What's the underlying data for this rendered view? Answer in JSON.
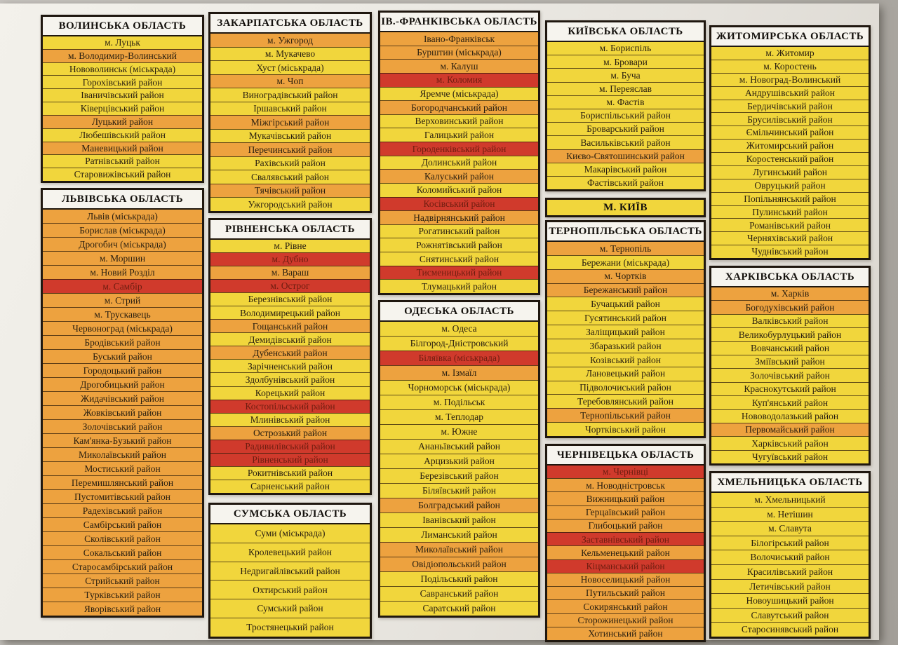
{
  "colors": {
    "yellow": "#f1d63c",
    "orange": "#eda23f",
    "red": "#d03a2c",
    "header_bg": "#f6f4ee",
    "paper": "#eceae4",
    "text": "#281e10",
    "red_row_text": "#6e1d10"
  },
  "regions": [
    {
      "id": "volyn",
      "title": "ВОЛИНСЬКА ОБЛАСТЬ",
      "header_zone": "white",
      "rows": [
        {
          "label": "м. Луцьк",
          "zone": "yellow"
        },
        {
          "label": "м. Володимир-Волинський",
          "zone": "orange"
        },
        {
          "label": "Нововолинськ (міськрада)",
          "zone": "yellow"
        },
        {
          "label": "Горохівський район",
          "zone": "yellow"
        },
        {
          "label": "Іваничівський район",
          "zone": "yellow"
        },
        {
          "label": "Ківерцівський район",
          "zone": "yellow"
        },
        {
          "label": "Луцький район",
          "zone": "orange"
        },
        {
          "label": "Любешівський район",
          "zone": "yellow"
        },
        {
          "label": "Маневицький район",
          "zone": "orange"
        },
        {
          "label": "Ратнівський район",
          "zone": "yellow"
        },
        {
          "label": "Старовижівський район",
          "zone": "yellow"
        }
      ]
    },
    {
      "id": "lviv",
      "title": "ЛЬВІВСЬКА ОБЛАСТЬ",
      "header_zone": "white",
      "rows": [
        {
          "label": "Львів (міськрада)",
          "zone": "orange"
        },
        {
          "label": "Борислав (міськрада)",
          "zone": "orange"
        },
        {
          "label": "Дрогобич (міськрада)",
          "zone": "orange"
        },
        {
          "label": "м. Моршин",
          "zone": "orange"
        },
        {
          "label": "м. Новий Розділ",
          "zone": "orange"
        },
        {
          "label": "м. Самбір",
          "zone": "red"
        },
        {
          "label": "м. Стрий",
          "zone": "orange"
        },
        {
          "label": "м. Трускавець",
          "zone": "orange"
        },
        {
          "label": "Червоноград (міськрада)",
          "zone": "orange"
        },
        {
          "label": "Бродівський район",
          "zone": "orange"
        },
        {
          "label": "Буський район",
          "zone": "orange"
        },
        {
          "label": "Городоцький район",
          "zone": "orange"
        },
        {
          "label": "Дрогобицький район",
          "zone": "orange"
        },
        {
          "label": "Жидачівський район",
          "zone": "orange"
        },
        {
          "label": "Жовківський район",
          "zone": "orange"
        },
        {
          "label": "Золочівський район",
          "zone": "orange"
        },
        {
          "label": "Кам'янка-Бузький район",
          "zone": "orange"
        },
        {
          "label": "Миколаївський район",
          "zone": "orange"
        },
        {
          "label": "Мостиський район",
          "zone": "orange"
        },
        {
          "label": "Перемишлянський район",
          "zone": "orange"
        },
        {
          "label": "Пустомитівський район",
          "zone": "orange"
        },
        {
          "label": "Радехівський район",
          "zone": "orange"
        },
        {
          "label": "Самбірський район",
          "zone": "orange"
        },
        {
          "label": "Сколівський район",
          "zone": "orange"
        },
        {
          "label": "Сокальський район",
          "zone": "orange"
        },
        {
          "label": "Старосамбірський район",
          "zone": "orange"
        },
        {
          "label": "Стрийський район",
          "zone": "orange"
        },
        {
          "label": "Турківський район",
          "zone": "orange"
        },
        {
          "label": "Яворівський район",
          "zone": "orange"
        }
      ]
    },
    {
      "id": "zakarpattia",
      "title": "ЗАКАРПАТСЬКА ОБЛАСТЬ",
      "header_zone": "white",
      "rows": [
        {
          "label": "м. Ужгород",
          "zone": "orange"
        },
        {
          "label": "м. Мукачево",
          "zone": "yellow"
        },
        {
          "label": "Хуст (міськрада)",
          "zone": "yellow"
        },
        {
          "label": "м. Чоп",
          "zone": "orange"
        },
        {
          "label": "Виноградівський район",
          "zone": "yellow"
        },
        {
          "label": "Іршавський район",
          "zone": "yellow"
        },
        {
          "label": "Міжгірський район",
          "zone": "orange"
        },
        {
          "label": "Мукачівський район",
          "zone": "yellow"
        },
        {
          "label": "Перечинський район",
          "zone": "orange"
        },
        {
          "label": "Рахівський район",
          "zone": "yellow"
        },
        {
          "label": "Свалявський район",
          "zone": "yellow"
        },
        {
          "label": "Тячівський район",
          "zone": "orange"
        },
        {
          "label": "Ужгородський район",
          "zone": "yellow"
        }
      ]
    },
    {
      "id": "rivne",
      "title": "РІВНЕНСЬКА ОБЛАСТЬ",
      "header_zone": "white",
      "rows": [
        {
          "label": "м. Рівне",
          "zone": "yellow"
        },
        {
          "label": "м. Дубно",
          "zone": "red"
        },
        {
          "label": "м. Вараш",
          "zone": "orange"
        },
        {
          "label": "м. Острог",
          "zone": "red"
        },
        {
          "label": "Березнівський район",
          "zone": "yellow"
        },
        {
          "label": "Володимирецький район",
          "zone": "yellow"
        },
        {
          "label": "Гощанський район",
          "zone": "orange"
        },
        {
          "label": "Демидівський район",
          "zone": "yellow"
        },
        {
          "label": "Дубенський район",
          "zone": "orange"
        },
        {
          "label": "Зарічненський район",
          "zone": "yellow"
        },
        {
          "label": "Здолбунівський район",
          "zone": "yellow"
        },
        {
          "label": "Корецький район",
          "zone": "yellow"
        },
        {
          "label": "Костопільський район",
          "zone": "red"
        },
        {
          "label": "Млинівський район",
          "zone": "yellow"
        },
        {
          "label": "Острозький район",
          "zone": "orange"
        },
        {
          "label": "Радивилівський район",
          "zone": "red"
        },
        {
          "label": "Рівненський район",
          "zone": "red"
        },
        {
          "label": "Рокитнівський район",
          "zone": "yellow"
        },
        {
          "label": "Сарненський район",
          "zone": "yellow"
        }
      ]
    },
    {
      "id": "sumy",
      "title": "СУМСЬКА ОБЛАСТЬ",
      "header_zone": "white",
      "rows": [
        {
          "label": "Суми (міськрада)",
          "zone": "yellow"
        },
        {
          "label": "Кролевецький район",
          "zone": "yellow"
        },
        {
          "label": "Недригайлівський район",
          "zone": "yellow"
        },
        {
          "label": "Охтирський район",
          "zone": "yellow"
        },
        {
          "label": "Сумський район",
          "zone": "yellow"
        },
        {
          "label": "Тростянецький район",
          "zone": "yellow"
        }
      ]
    },
    {
      "id": "ivano-frankivsk",
      "title": "ІВ.-ФРАНКІВСЬКА ОБЛАСТЬ",
      "header_zone": "white",
      "rows": [
        {
          "label": "Івано-Франківськ",
          "zone": "orange"
        },
        {
          "label": "Бурштин (міськрада)",
          "zone": "orange"
        },
        {
          "label": "м. Калуш",
          "zone": "orange"
        },
        {
          "label": "м. Коломия",
          "zone": "red"
        },
        {
          "label": "Яремче (міськрада)",
          "zone": "yellow"
        },
        {
          "label": "Богородчанський район",
          "zone": "orange"
        },
        {
          "label": "Верховинський район",
          "zone": "yellow"
        },
        {
          "label": "Галицький район",
          "zone": "yellow"
        },
        {
          "label": "Городенківський район",
          "zone": "red"
        },
        {
          "label": "Долинський район",
          "zone": "yellow"
        },
        {
          "label": "Калуський район",
          "zone": "orange"
        },
        {
          "label": "Коломийський район",
          "zone": "yellow"
        },
        {
          "label": "Косівський район",
          "zone": "red"
        },
        {
          "label": "Надвірнянський район",
          "zone": "orange"
        },
        {
          "label": "Рогатинський район",
          "zone": "yellow"
        },
        {
          "label": "Рожнятівський район",
          "zone": "yellow"
        },
        {
          "label": "Снятинський район",
          "zone": "yellow"
        },
        {
          "label": "Тисменицький район",
          "zone": "red"
        },
        {
          "label": "Тлумацький район",
          "zone": "yellow"
        }
      ]
    },
    {
      "id": "odesa",
      "title": "ОДЕСЬКА ОБЛАСТЬ",
      "header_zone": "white",
      "rows": [
        {
          "label": "м. Одеса",
          "zone": "yellow"
        },
        {
          "label": "Білгород-Дністровський",
          "zone": "yellow"
        },
        {
          "label": "Біляївка (міськрада)",
          "zone": "red"
        },
        {
          "label": "м. Ізмаїл",
          "zone": "orange"
        },
        {
          "label": "Чорноморськ (міськрада)",
          "zone": "yellow"
        },
        {
          "label": "м. Подільськ",
          "zone": "yellow"
        },
        {
          "label": "м. Теплодар",
          "zone": "yellow"
        },
        {
          "label": "м. Южне",
          "zone": "yellow"
        },
        {
          "label": "Ананьївський район",
          "zone": "yellow"
        },
        {
          "label": "Арцизький район",
          "zone": "yellow"
        },
        {
          "label": "Березівський район",
          "zone": "yellow"
        },
        {
          "label": "Біляївський район",
          "zone": "yellow"
        },
        {
          "label": "Болградський район",
          "zone": "orange"
        },
        {
          "label": "Іванівський район",
          "zone": "yellow"
        },
        {
          "label": "Лиманський район",
          "zone": "yellow"
        },
        {
          "label": "Миколаївський район",
          "zone": "orange"
        },
        {
          "label": "Овідіопольський район",
          "zone": "orange"
        },
        {
          "label": "Подільський район",
          "zone": "yellow"
        },
        {
          "label": "Савранський район",
          "zone": "yellow"
        },
        {
          "label": "Саратський район",
          "zone": "yellow"
        }
      ]
    },
    {
      "id": "kyivska",
      "title": "КИЇВСЬКА ОБЛАСТЬ",
      "header_zone": "white",
      "rows": [
        {
          "label": "м. Бориспіль",
          "zone": "yellow"
        },
        {
          "label": "м. Бровари",
          "zone": "yellow"
        },
        {
          "label": "м. Буча",
          "zone": "yellow"
        },
        {
          "label": "м. Переяслав",
          "zone": "yellow"
        },
        {
          "label": "м. Фастів",
          "zone": "yellow"
        },
        {
          "label": "Бориспільський район",
          "zone": "yellow"
        },
        {
          "label": "Броварський район",
          "zone": "yellow"
        },
        {
          "label": "Васильківський район",
          "zone": "yellow"
        },
        {
          "label": "Києво-Святошинський район",
          "zone": "orange"
        },
        {
          "label": "Макарівський район",
          "zone": "yellow"
        },
        {
          "label": "Фастівський район",
          "zone": "yellow"
        }
      ]
    },
    {
      "id": "kyiv-city",
      "title": "М. КИЇВ",
      "header_zone": "yellow",
      "rows": []
    },
    {
      "id": "ternopil",
      "title": "ТЕРНОПІЛЬСЬКА ОБЛАСТЬ",
      "header_zone": "white",
      "rows": [
        {
          "label": "м. Тернопіль",
          "zone": "orange"
        },
        {
          "label": "Бережани (міськрада)",
          "zone": "yellow"
        },
        {
          "label": "м. Чортків",
          "zone": "orange"
        },
        {
          "label": "Бережанський район",
          "zone": "orange"
        },
        {
          "label": "Бучацький район",
          "zone": "yellow"
        },
        {
          "label": "Гусятинський район",
          "zone": "yellow"
        },
        {
          "label": "Заліщицький район",
          "zone": "yellow"
        },
        {
          "label": "Збаразький район",
          "zone": "yellow"
        },
        {
          "label": "Козівський район",
          "zone": "yellow"
        },
        {
          "label": "Лановецький район",
          "zone": "yellow"
        },
        {
          "label": "Підволочиський район",
          "zone": "yellow"
        },
        {
          "label": "Теребовлянський район",
          "zone": "yellow"
        },
        {
          "label": "Тернопільський район",
          "zone": "orange"
        },
        {
          "label": "Чортківський район",
          "zone": "yellow"
        }
      ]
    },
    {
      "id": "chernivtsi",
      "title": "ЧЕРНІВЕЦЬКА ОБЛАСТЬ",
      "header_zone": "white",
      "rows": [
        {
          "label": "м. Чернівці",
          "zone": "red"
        },
        {
          "label": "м. Новодністровськ",
          "zone": "orange"
        },
        {
          "label": "Вижницький район",
          "zone": "orange"
        },
        {
          "label": "Герцаївський район",
          "zone": "orange"
        },
        {
          "label": "Глибоцький район",
          "zone": "orange"
        },
        {
          "label": "Заставнівський район",
          "zone": "red"
        },
        {
          "label": "Кельменецький район",
          "zone": "orange"
        },
        {
          "label": "Кіцманський район",
          "zone": "red"
        },
        {
          "label": "Новоселицький район",
          "zone": "orange"
        },
        {
          "label": "Путильський район",
          "zone": "orange"
        },
        {
          "label": "Сокирянський район",
          "zone": "orange"
        },
        {
          "label": "Сторожинецький район",
          "zone": "orange"
        },
        {
          "label": "Хотинський район",
          "zone": "orange"
        }
      ]
    },
    {
      "id": "zhytomyr",
      "title": "ЖИТОМИРСЬКА ОБЛАСТЬ",
      "header_zone": "white",
      "rows": [
        {
          "label": "м. Житомир",
          "zone": "yellow"
        },
        {
          "label": "м. Коростень",
          "zone": "yellow"
        },
        {
          "label": "м. Новоград-Волинський",
          "zone": "yellow"
        },
        {
          "label": "Андрушівський район",
          "zone": "yellow"
        },
        {
          "label": "Бердичівський район",
          "zone": "yellow"
        },
        {
          "label": "Брусилівський район",
          "zone": "yellow"
        },
        {
          "label": "Ємільчинський район",
          "zone": "yellow"
        },
        {
          "label": "Житомирський район",
          "zone": "yellow"
        },
        {
          "label": "Коростенський район",
          "zone": "yellow"
        },
        {
          "label": "Лугинський район",
          "zone": "yellow"
        },
        {
          "label": "Овруцький район",
          "zone": "yellow"
        },
        {
          "label": "Попільнянський район",
          "zone": "yellow"
        },
        {
          "label": "Пулинський район",
          "zone": "yellow"
        },
        {
          "label": "Романівський район",
          "zone": "yellow"
        },
        {
          "label": "Черняхівський район",
          "zone": "yellow"
        },
        {
          "label": "Чуднівський район",
          "zone": "yellow"
        }
      ]
    },
    {
      "id": "kharkiv",
      "title": "ХАРКІВСЬКА ОБЛАСТЬ",
      "header_zone": "white",
      "rows": [
        {
          "label": "м. Харків",
          "zone": "orange"
        },
        {
          "label": "Богодухівський район",
          "zone": "orange"
        },
        {
          "label": "Валківський район",
          "zone": "yellow"
        },
        {
          "label": "Великобурлуцький район",
          "zone": "yellow"
        },
        {
          "label": "Вовчанський район",
          "zone": "yellow"
        },
        {
          "label": "Зміївський район",
          "zone": "yellow"
        },
        {
          "label": "Золочівський район",
          "zone": "yellow"
        },
        {
          "label": "Краснокутський район",
          "zone": "yellow"
        },
        {
          "label": "Куп'янський район",
          "zone": "yellow"
        },
        {
          "label": "Нововодолазький район",
          "zone": "yellow"
        },
        {
          "label": "Первомайський район",
          "zone": "orange"
        },
        {
          "label": "Харківський район",
          "zone": "yellow"
        },
        {
          "label": "Чугуївський район",
          "zone": "yellow"
        }
      ]
    },
    {
      "id": "khmelnytskyi",
      "title": "ХМЕЛЬНИЦЬКА ОБЛАСТЬ",
      "header_zone": "white",
      "rows": [
        {
          "label": "м. Хмельницький",
          "zone": "yellow"
        },
        {
          "label": "м. Нетішин",
          "zone": "yellow"
        },
        {
          "label": "м. Славута",
          "zone": "yellow"
        },
        {
          "label": "Білогірський район",
          "zone": "yellow"
        },
        {
          "label": "Волочиський район",
          "zone": "yellow"
        },
        {
          "label": "Красилівський район",
          "zone": "yellow"
        },
        {
          "label": "Летичівський район",
          "zone": "yellow"
        },
        {
          "label": "Новоушицький район",
          "zone": "yellow"
        },
        {
          "label": "Славутський район",
          "zone": "yellow"
        },
        {
          "label": "Старосинявський район",
          "zone": "yellow"
        }
      ]
    }
  ]
}
